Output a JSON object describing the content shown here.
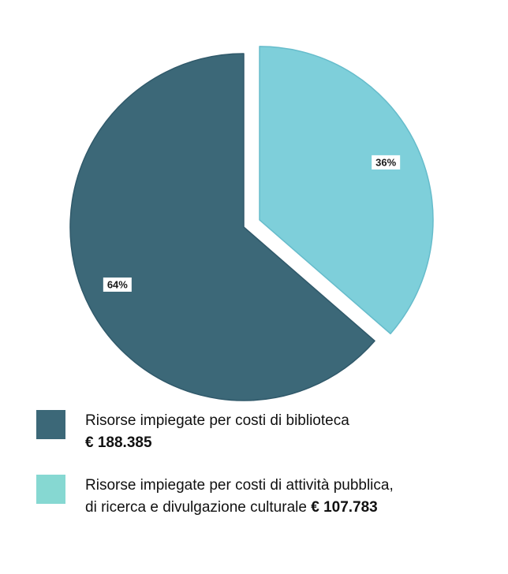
{
  "chart_data": {
    "type": "pie",
    "title": "",
    "categories": [
      "Risorse impiegate per costi di biblioteca",
      "Risorse impiegate per costi di attività pubblica, di ricerca e divulgazione culturale"
    ],
    "values": [
      188385,
      107783
    ],
    "percent_labels": [
      "64%",
      "36%"
    ],
    "colors": [
      "#3c6878",
      "#7ecfda"
    ],
    "exploded_slice": 1,
    "legend_position": "bottom"
  },
  "legend": {
    "items": [
      {
        "label_line1": "Risorse impiegate per costi di biblioteca",
        "label_line2": "",
        "amount": "€ 188.385",
        "color": "#3c6878",
        "swatch_color": "#3c6878"
      },
      {
        "label_line1": "Risorse impiegate per costi di attività pubblica,",
        "label_line2": "di ricerca e divulgazione culturale",
        "amount": "€ 107.783",
        "color": "#7ecfda",
        "swatch_color": "#86d8d2"
      }
    ]
  }
}
